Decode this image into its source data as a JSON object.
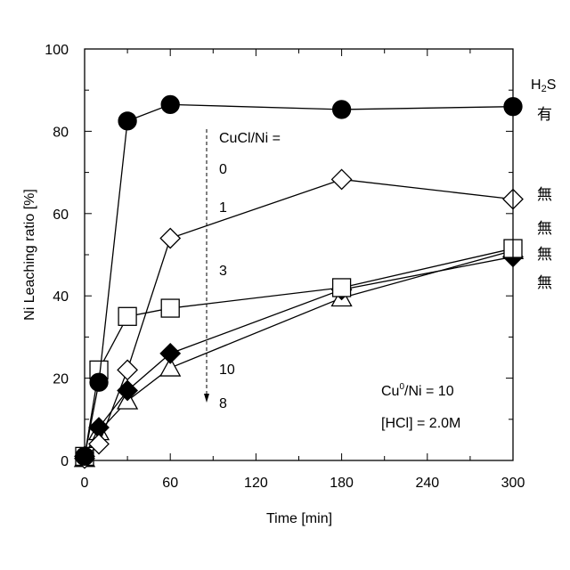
{
  "chart_data": {
    "type": "line",
    "xlabel": "Time [min]",
    "ylabel": "Ni Leaching ratio [%]",
    "xlim": [
      0,
      300
    ],
    "ylim": [
      0,
      100
    ],
    "xticks": [
      0,
      60,
      120,
      180,
      240,
      300
    ],
    "yticks": [
      0,
      20,
      40,
      60,
      80,
      100
    ],
    "x": [
      0,
      10,
      30,
      60,
      180,
      300
    ],
    "series": [
      {
        "name": "0",
        "marker": "circle",
        "filled": true,
        "h2s": "有",
        "values": [
          1,
          19,
          82.5,
          86.5,
          85.3,
          86
        ]
      },
      {
        "name": "1",
        "marker": "diamond",
        "filled": false,
        "h2s": "無",
        "values": [
          0.5,
          4,
          22,
          54,
          68.3,
          63.5
        ]
      },
      {
        "name": "3",
        "marker": "square",
        "filled": false,
        "h2s": "無",
        "values": [
          1,
          22,
          35,
          37,
          42,
          51.5
        ]
      },
      {
        "name": "10",
        "marker": "diamond",
        "filled": true,
        "h2s": "無",
        "values": [
          1,
          8,
          17,
          26,
          41.5,
          49.5
        ]
      },
      {
        "name": "8",
        "marker": "triangle",
        "filled": false,
        "h2s": "無",
        "values": [
          0.5,
          7,
          14.5,
          22.5,
          39.5,
          51
        ]
      }
    ],
    "legend_title": "CuCl/Ni =",
    "h2s_header": "H2S",
    "annotations": [
      "Cu0/Ni = 10",
      "[HCl] = 2.0M"
    ]
  }
}
